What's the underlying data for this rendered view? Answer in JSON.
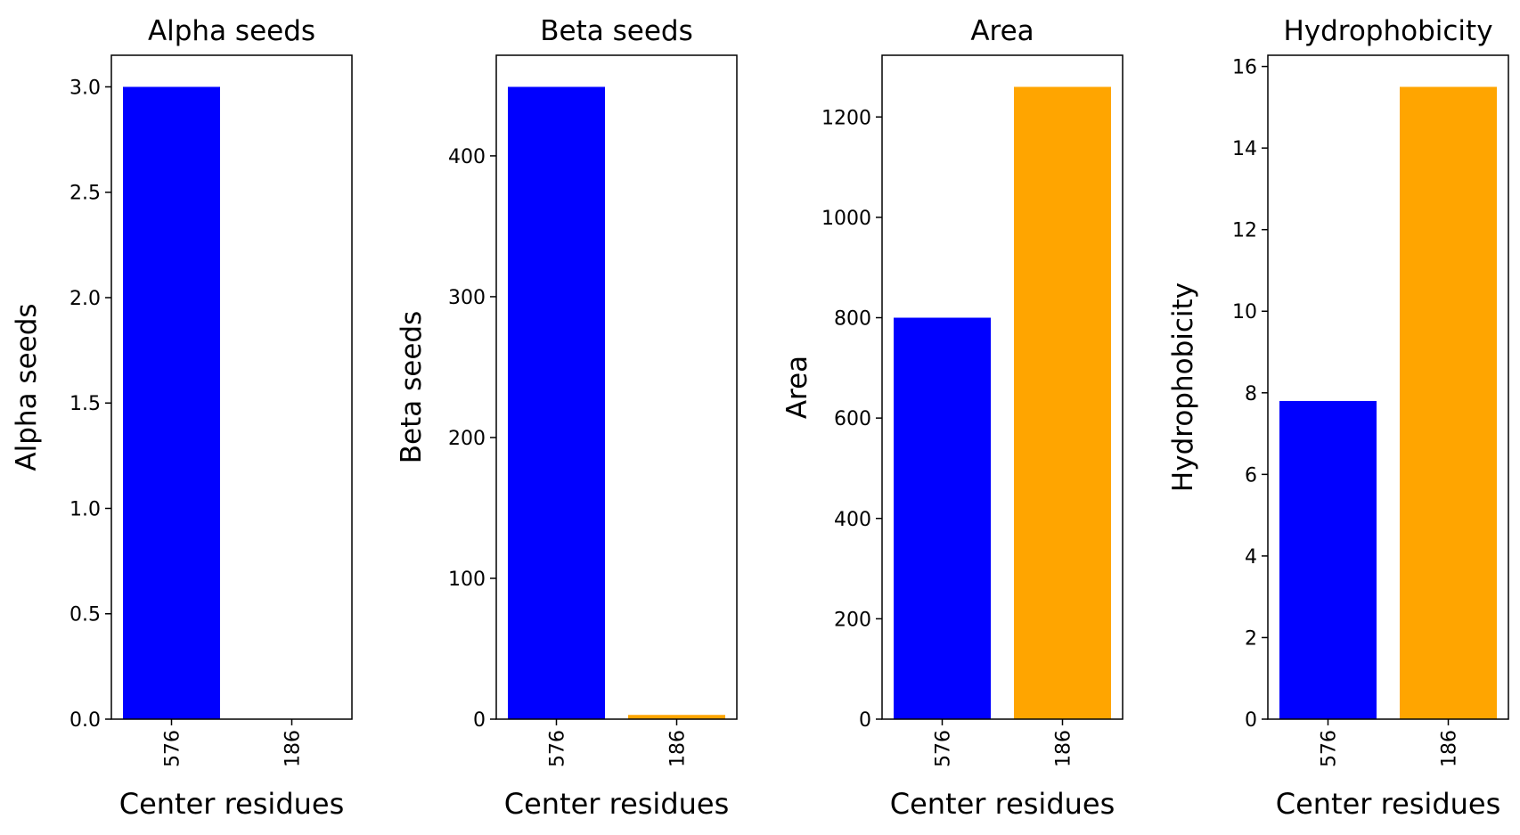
{
  "chart_data": [
    {
      "type": "bar",
      "title": "Alpha seeds",
      "xlabel": "Center residues",
      "ylabel": "Alpha seeds",
      "categories": [
        "576",
        "186"
      ],
      "values": [
        3,
        0
      ],
      "colors": [
        "#0000ff",
        "#ffa500"
      ],
      "ylim": [
        0,
        3.15
      ],
      "yticks": [
        0.0,
        0.5,
        1.0,
        1.5,
        2.0,
        2.5,
        3.0
      ],
      "ytick_labels": [
        "0.0",
        "0.5",
        "1.0",
        "1.5",
        "2.0",
        "2.5",
        "3.0"
      ]
    },
    {
      "type": "bar",
      "title": "Beta seeds",
      "xlabel": "Center residues",
      "ylabel": "Beta seeds",
      "categories": [
        "576",
        "186"
      ],
      "values": [
        449,
        3
      ],
      "colors": [
        "#0000ff",
        "#ffa500"
      ],
      "ylim": [
        0,
        471.45
      ],
      "yticks": [
        0,
        100,
        200,
        300,
        400
      ],
      "ytick_labels": [
        "0",
        "100",
        "200",
        "300",
        "400"
      ]
    },
    {
      "type": "bar",
      "title": "Area",
      "xlabel": "Center residues",
      "ylabel": "Area",
      "categories": [
        "576",
        "186"
      ],
      "values": [
        800,
        1260
      ],
      "colors": [
        "#0000ff",
        "#ffa500"
      ],
      "ylim": [
        0,
        1323
      ],
      "yticks": [
        0,
        200,
        400,
        600,
        800,
        1000,
        1200
      ],
      "ytick_labels": [
        "0",
        "200",
        "400",
        "600",
        "800",
        "1000",
        "1200"
      ]
    },
    {
      "type": "bar",
      "title": "Hydrophobicity",
      "xlabel": "Center residues",
      "ylabel": "Hydrophobicity",
      "categories": [
        "576",
        "186"
      ],
      "values": [
        7.8,
        15.5
      ],
      "colors": [
        "#0000ff",
        "#ffa500"
      ],
      "ylim": [
        0,
        16.275
      ],
      "yticks": [
        0,
        2,
        4,
        6,
        8,
        10,
        12,
        14,
        16
      ],
      "ytick_labels": [
        "0",
        "2",
        "4",
        "6",
        "8",
        "10",
        "12",
        "14",
        "16"
      ]
    }
  ]
}
